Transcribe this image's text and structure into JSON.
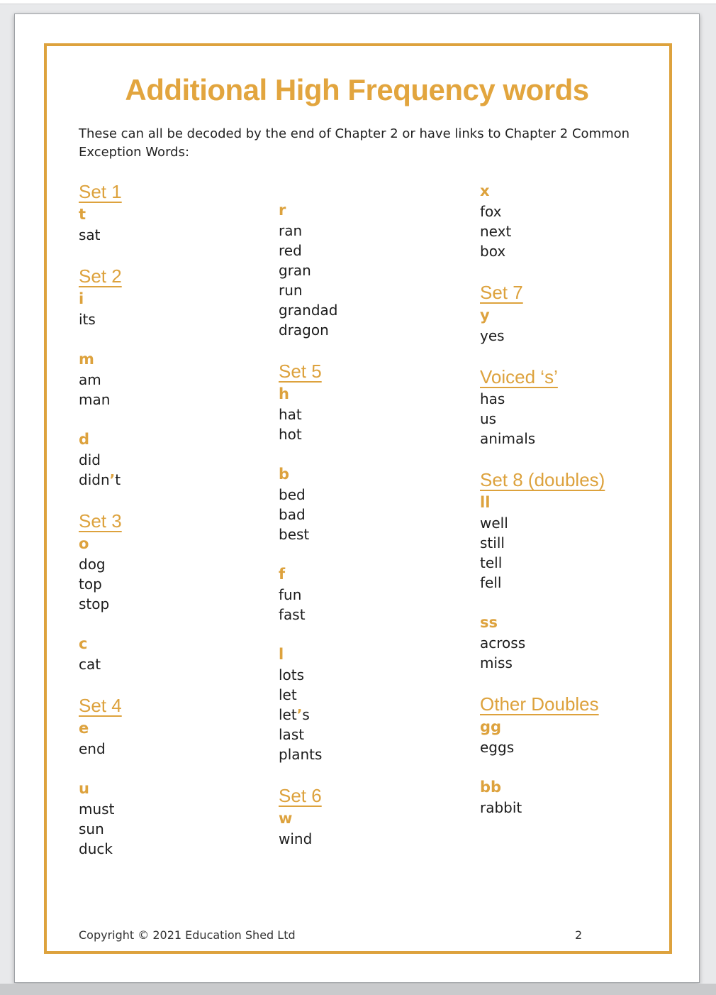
{
  "page": {
    "title": "Additional High Frequency words",
    "intro": {
      "line1": "These can all be decoded by the end of Chapter 2 or have links to Chapter 2 Common",
      "line2": "Exception Words:"
    },
    "footer": {
      "copyright": "Copyright © 2021 Education Shed Ltd",
      "page_number": "2"
    }
  },
  "colors": {
    "accent_gold": "#DDA23D",
    "body_text": "#1C1C1C",
    "viewer_background": "#E8E9EB"
  },
  "columns": [
    {
      "groups": [
        {
          "heading": "Set 1",
          "letter": "t",
          "words": [
            "sat"
          ]
        },
        {
          "heading": "Set 2",
          "letter": "i",
          "words": [
            "its"
          ]
        },
        {
          "heading": null,
          "letter": "m",
          "words": [
            "am",
            "man"
          ]
        },
        {
          "heading": null,
          "letter": "d",
          "words": [
            "did",
            "didn’t"
          ]
        },
        {
          "heading": "Set 3",
          "letter": "o",
          "words": [
            "dog",
            "top",
            "stop"
          ]
        },
        {
          "heading": null,
          "letter": "c",
          "words": [
            "cat"
          ]
        },
        {
          "heading": "Set 4",
          "letter": "e",
          "words": [
            "end"
          ]
        },
        {
          "heading": null,
          "letter": "u",
          "words": [
            "must",
            "sun",
            "duck"
          ]
        }
      ]
    },
    {
      "groups": [
        {
          "heading": null,
          "letter": "r",
          "words": [
            "ran",
            "red",
            "gran",
            "run",
            "grandad",
            "dragon"
          ]
        },
        {
          "heading": "Set 5",
          "letter": "h",
          "words": [
            "hat",
            "hot"
          ]
        },
        {
          "heading": null,
          "letter": "b",
          "words": [
            "bed",
            "bad",
            "best"
          ]
        },
        {
          "heading": null,
          "letter": "f",
          "words": [
            "fun",
            "fast"
          ]
        },
        {
          "heading": null,
          "letter": "l",
          "words": [
            "lots",
            "let",
            "let’s",
            "last",
            "plants"
          ]
        },
        {
          "heading": "Set 6",
          "letter": "w",
          "words": [
            "wind"
          ]
        }
      ]
    },
    {
      "groups": [
        {
          "heading": null,
          "letter": "x",
          "words": [
            "fox",
            "next",
            "box"
          ]
        },
        {
          "heading": "Set 7",
          "letter": "y",
          "words": [
            "yes"
          ]
        },
        {
          "heading": "Voiced ‘s’",
          "letter": null,
          "words": [
            "has",
            "us",
            "animals"
          ]
        },
        {
          "heading": "Set 8 (doubles)",
          "letter": "ll",
          "words": [
            "well",
            "still",
            "tell",
            "fell"
          ]
        },
        {
          "heading": null,
          "letter": "ss",
          "words": [
            "across",
            "miss"
          ]
        },
        {
          "heading": "Other Doubles",
          "letter": "gg",
          "words": [
            "eggs"
          ]
        },
        {
          "heading": null,
          "letter": "bb",
          "words": [
            "rabbit"
          ]
        }
      ]
    }
  ]
}
